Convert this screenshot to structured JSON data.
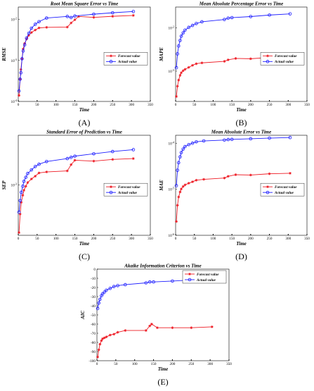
{
  "colors": {
    "forecast": "#ee1c25",
    "actual": "#1f1fff",
    "axis": "#000000"
  },
  "legend": {
    "forecast": "Forecast value",
    "actual": "Actual value"
  },
  "chart_data": [
    {
      "id": "rmse",
      "panel_label": "(A)",
      "type": "line",
      "title": "Root Mean Square Error vs Time",
      "xlabel": "Time",
      "ylabel": "RMSE",
      "yscale": "log",
      "xlim": [
        0,
        350
      ],
      "ylim": [
        0.0001,
        0.02
      ],
      "xticks": [
        0,
        50,
        100,
        150,
        200,
        250,
        300,
        350
      ],
      "yticks": [
        {
          "value": 0.0001,
          "base": "10",
          "exp": "-4"
        },
        {
          "value": 0.001,
          "base": "10",
          "exp": "-3"
        },
        {
          "value": 0.01,
          "base": "10",
          "exp": "-2"
        }
      ],
      "legend_position": "right-middle",
      "series": [
        {
          "name": "Forecast value",
          "marker": "star",
          "x": [
            2,
            5,
            7,
            10,
            13,
            17,
            22,
            28,
            35,
            45,
            55,
            75,
            130,
            140,
            150,
            160,
            200,
            250,
            305
          ],
          "y": [
            0.00014,
            0.00035,
            0.0006,
            0.0011,
            0.0019,
            0.0026,
            0.0033,
            0.0041,
            0.0048,
            0.0055,
            0.0062,
            0.0064,
            0.0065,
            0.0082,
            0.0098,
            0.0118,
            0.0112,
            0.0119,
            0.0125
          ]
        },
        {
          "name": "Actual value",
          "marker": "circle",
          "x": [
            2,
            5,
            7,
            10,
            13,
            17,
            22,
            28,
            35,
            45,
            55,
            75,
            130,
            140,
            150,
            200,
            250,
            305
          ],
          "y": [
            0.00018,
            0.00035,
            0.0005,
            0.0011,
            0.0017,
            0.0024,
            0.0035,
            0.0046,
            0.0061,
            0.0076,
            0.0088,
            0.0108,
            0.0118,
            0.0111,
            0.0121,
            0.0134,
            0.0145,
            0.0156
          ]
        }
      ]
    },
    {
      "id": "mape",
      "panel_label": "(B)",
      "type": "line",
      "title": "Mean Absolute Percentage Error vs Time",
      "xlabel": "Time",
      "ylabel": "MAPE",
      "yscale": "log",
      "xlim": [
        0,
        350
      ],
      "ylim": [
        0.0002,
        0.03
      ],
      "xticks": [
        0,
        50,
        100,
        150,
        200,
        250,
        300,
        350
      ],
      "yticks": [
        {
          "value": 0.001,
          "base": "10",
          "exp": "-3"
        },
        {
          "value": 0.01,
          "base": "10",
          "exp": "-2"
        }
      ],
      "legend_position": "right-middle",
      "series": [
        {
          "name": "Forecast value",
          "marker": "star",
          "x": [
            2,
            5,
            8,
            12,
            15,
            20,
            25,
            35,
            45,
            55,
            70,
            130,
            140,
            160,
            200,
            250,
            305
          ],
          "y": [
            0.00026,
            0.00045,
            0.00062,
            0.0008,
            0.00092,
            0.00102,
            0.0011,
            0.00122,
            0.00136,
            0.00148,
            0.00155,
            0.00168,
            0.00182,
            0.00196,
            0.00193,
            0.00206,
            0.0021
          ]
        },
        {
          "name": "Actual value",
          "marker": "circle",
          "x": [
            2,
            5,
            8,
            12,
            15,
            20,
            25,
            35,
            45,
            55,
            70,
            130,
            140,
            150,
            200,
            250,
            305
          ],
          "y": [
            0.0012,
            0.0025,
            0.0038,
            0.0051,
            0.0064,
            0.0076,
            0.0088,
            0.0102,
            0.0113,
            0.0125,
            0.0137,
            0.0155,
            0.0167,
            0.0171,
            0.0181,
            0.0196,
            0.0209
          ]
        }
      ]
    },
    {
      "id": "sep",
      "panel_label": "(C)",
      "type": "line",
      "title": "Standard Error of Prediction vs Time",
      "xlabel": "Time",
      "ylabel": "SEP",
      "yscale": "log",
      "xlim": [
        0,
        350
      ],
      "ylim": [
        0.00045,
        0.0022
      ],
      "xticks": [
        0,
        50,
        100,
        150,
        200,
        250,
        300,
        350
      ],
      "yticks": [
        {
          "value": 0.001,
          "base": "10",
          "exp": "-3"
        }
      ],
      "legend_position": "right-middle",
      "series": [
        {
          "name": "Forecast value",
          "marker": "star",
          "x": [
            2,
            5,
            8,
            12,
            15,
            20,
            25,
            35,
            45,
            55,
            75,
            130,
            140,
            150,
            200,
            250,
            305
          ],
          "y": [
            0.00047,
            0.00063,
            0.00076,
            0.00085,
            0.00092,
            0.00098,
            0.00104,
            0.0011,
            0.00115,
            0.00121,
            0.00123,
            0.00125,
            0.00138,
            0.00148,
            0.00146,
            0.0015,
            0.00152
          ]
        },
        {
          "name": "Actual value",
          "marker": "circle",
          "x": [
            2,
            5,
            8,
            12,
            15,
            20,
            25,
            35,
            45,
            55,
            75,
            130,
            140,
            150,
            200,
            250,
            305
          ],
          "y": [
            0.00065,
            0.00078,
            0.00089,
            0.00098,
            0.00106,
            0.00113,
            0.0012,
            0.00127,
            0.00134,
            0.00139,
            0.00145,
            0.00152,
            0.00155,
            0.00158,
            0.00164,
            0.0017,
            0.00175
          ]
        }
      ]
    },
    {
      "id": "mae",
      "panel_label": "(D)",
      "type": "line",
      "title": "Mean Absolute Error vs Time",
      "xlabel": "Time",
      "ylabel": "MAE",
      "yscale": "log",
      "xlim": [
        0,
        350
      ],
      "ylim": [
        1e-06,
        0.00015
      ],
      "xticks": [
        0,
        50,
        100,
        150,
        200,
        250,
        300,
        350
      ],
      "yticks": [
        {
          "value": 1e-06,
          "base": "10",
          "exp": "-6"
        },
        {
          "value": 1e-05,
          "base": "10",
          "exp": "-5"
        },
        {
          "value": 0.0001,
          "base": "10",
          "exp": "-4"
        }
      ],
      "legend_position": "right-middle",
      "series": [
        {
          "name": "Forecast value",
          "marker": "star",
          "x": [
            2,
            5,
            8,
            12,
            15,
            20,
            25,
            35,
            45,
            55,
            75,
            130,
            140,
            160,
            200,
            250,
            305
          ],
          "y": [
            2e-06,
            4.5e-06,
            6.8e-06,
            8.8e-06,
            1.02e-05,
            1.15e-05,
            1.25e-05,
            1.36e-05,
            1.46e-05,
            1.58e-05,
            1.65e-05,
            1.76e-05,
            1.92e-05,
            2.08e-05,
            2.05e-05,
            2.18e-05,
            2.24e-05
          ]
        },
        {
          "name": "Actual value",
          "marker": "circle",
          "x": [
            2,
            5,
            8,
            12,
            15,
            20,
            25,
            35,
            45,
            55,
            75,
            130,
            140,
            150,
            200,
            250,
            305
          ],
          "y": [
            1.2e-05,
            2.6e-05,
            3.8e-05,
            5.1e-05,
            6.3e-05,
            7.5e-05,
            8.5e-05,
            9.4e-05,
            0.000101,
            0.000108,
            0.000113,
            0.000118,
            0.000121,
            0.000122,
            0.000126,
            0.00013,
            0.000134
          ]
        }
      ]
    },
    {
      "id": "aic",
      "panel_label": "(E)",
      "type": "line",
      "title": "Akaike Information Criterion vs Time",
      "xlabel": "Time",
      "ylabel": "AIC",
      "yscale": "linear",
      "xlim": [
        0,
        350
      ],
      "ylim": [
        -100,
        0
      ],
      "xticks": [
        0,
        50,
        100,
        150,
        200,
        250,
        300,
        350
      ],
      "yticks": [
        {
          "value": -100,
          "label": "-100"
        },
        {
          "value": -90,
          "label": "-90"
        },
        {
          "value": -80,
          "label": "-80"
        },
        {
          "value": -70,
          "label": "-70"
        },
        {
          "value": -60,
          "label": "-60"
        },
        {
          "value": -50,
          "label": "-50"
        },
        {
          "value": -40,
          "label": "-40"
        },
        {
          "value": -30,
          "label": "-30"
        },
        {
          "value": -20,
          "label": "-20"
        },
        {
          "value": -10,
          "label": "-10"
        },
        {
          "value": 0,
          "label": "0"
        }
      ],
      "legend_position": "top-right",
      "series": [
        {
          "name": "Forecast value",
          "marker": "star",
          "x": [
            2,
            5,
            8,
            12,
            15,
            20,
            25,
            35,
            45,
            55,
            75,
            130,
            140,
            145,
            160,
            200,
            250,
            305
          ],
          "y": [
            -96,
            -88,
            -82,
            -78,
            -76,
            -75,
            -74,
            -72,
            -71,
            -69,
            -67,
            -67,
            -62,
            -60,
            -64,
            -64,
            -64,
            -63
          ]
        },
        {
          "name": "Actual value",
          "marker": "circle",
          "x": [
            2,
            5,
            8,
            12,
            15,
            20,
            25,
            35,
            45,
            55,
            75,
            130,
            140,
            150,
            200,
            250,
            305
          ],
          "y": [
            -43,
            -37,
            -33,
            -29,
            -27,
            -25,
            -23,
            -21,
            -19,
            -18,
            -17,
            -15,
            -14,
            -14,
            -13,
            -12,
            -11
          ]
        }
      ]
    }
  ]
}
